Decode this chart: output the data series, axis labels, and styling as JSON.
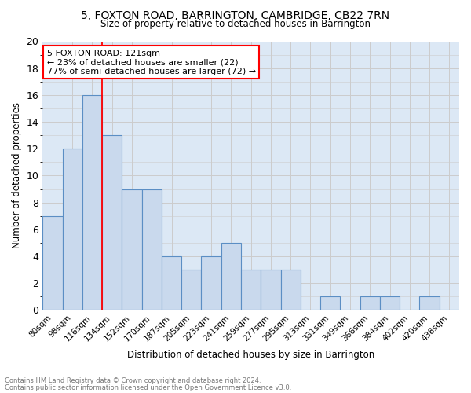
{
  "title": "5, FOXTON ROAD, BARRINGTON, CAMBRIDGE, CB22 7RN",
  "subtitle": "Size of property relative to detached houses in Barrington",
  "xlabel": "Distribution of detached houses by size in Barrington",
  "ylabel": "Number of detached properties",
  "footnote1": "Contains HM Land Registry data © Crown copyright and database right 2024.",
  "footnote2": "Contains public sector information licensed under the Open Government Licence v3.0.",
  "categories": [
    "80sqm",
    "98sqm",
    "116sqm",
    "134sqm",
    "152sqm",
    "170sqm",
    "187sqm",
    "205sqm",
    "223sqm",
    "241sqm",
    "259sqm",
    "277sqm",
    "295sqm",
    "313sqm",
    "331sqm",
    "349sqm",
    "366sqm",
    "384sqm",
    "402sqm",
    "420sqm",
    "438sqm"
  ],
  "values": [
    7,
    12,
    16,
    13,
    9,
    9,
    4,
    3,
    4,
    5,
    3,
    3,
    3,
    0,
    1,
    0,
    1,
    1,
    0,
    1,
    0
  ],
  "bar_color": "#c9d9ed",
  "bar_edge_color": "#5b8ec4",
  "bar_linewidth": 0.8,
  "vline_x_index": 2,
  "vline_color": "red",
  "annotation_title": "5 FOXTON ROAD: 121sqm",
  "annotation_line1": "← 23% of detached houses are smaller (22)",
  "annotation_line2": "77% of semi-detached houses are larger (72) →",
  "annotation_box_color": "white",
  "annotation_box_edge": "red",
  "grid_color": "#cccccc",
  "background_color": "#dce8f5",
  "ylim": [
    0,
    20
  ],
  "yticks": [
    0,
    2,
    4,
    6,
    8,
    10,
    12,
    14,
    16,
    18,
    20
  ]
}
